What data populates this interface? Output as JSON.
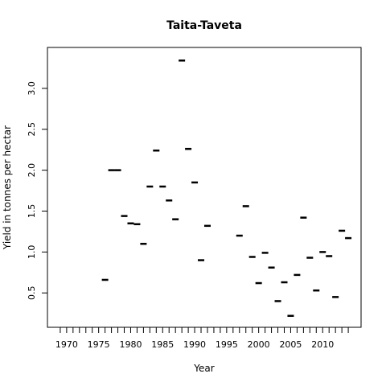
{
  "chart_data": {
    "type": "scatter",
    "title": "Taita-Taveta",
    "xlabel": "Year",
    "ylabel": "Yield in tonnes per hectar",
    "xlim": [
      1967,
      2016
    ],
    "ylim": [
      0.08,
      3.5
    ],
    "x_tick_labels": [
      "1970",
      "1975",
      "1980",
      "1985",
      "1990",
      "1995",
      "2000",
      "2005",
      "2010"
    ],
    "x_tick_values": [
      1970,
      1975,
      1980,
      1985,
      1990,
      1995,
      2000,
      2005,
      2010
    ],
    "x_minor_ticks": [
      1969,
      1970,
      1971,
      1972,
      1973,
      1974,
      1975,
      1976,
      1977,
      1978,
      1979,
      1980,
      1981,
      1982,
      1983,
      1984,
      1985,
      1986,
      1987,
      1988,
      1989,
      1990,
      1991,
      1992,
      1993,
      1994,
      1995,
      1996,
      1997,
      1998,
      1999,
      2000,
      2001,
      2002,
      2003,
      2004,
      2005,
      2006,
      2007,
      2008,
      2009,
      2010,
      2011,
      2012,
      2013,
      2014
    ],
    "y_tick_labels": [
      "0.5",
      "1.0",
      "1.5",
      "2.0",
      "2.5",
      "3.0"
    ],
    "y_tick_values": [
      0.5,
      1.0,
      1.5,
      2.0,
      2.5,
      3.0
    ],
    "grid": false,
    "marker": "dash",
    "points": [
      {
        "x": 1976,
        "y": 0.66
      },
      {
        "x": 1977,
        "y": 2.0
      },
      {
        "x": 1978,
        "y": 2.0
      },
      {
        "x": 1979,
        "y": 1.44
      },
      {
        "x": 1980,
        "y": 1.35
      },
      {
        "x": 1981,
        "y": 1.34
      },
      {
        "x": 1982,
        "y": 1.1
      },
      {
        "x": 1983,
        "y": 1.8
      },
      {
        "x": 1984,
        "y": 2.24
      },
      {
        "x": 1985,
        "y": 1.8
      },
      {
        "x": 1986,
        "y": 1.63
      },
      {
        "x": 1987,
        "y": 1.4
      },
      {
        "x": 1988,
        "y": 3.34
      },
      {
        "x": 1989,
        "y": 2.26
      },
      {
        "x": 1990,
        "y": 1.85
      },
      {
        "x": 1991,
        "y": 0.9
      },
      {
        "x": 1992,
        "y": 1.32
      },
      {
        "x": 1997,
        "y": 1.2
      },
      {
        "x": 1998,
        "y": 1.56
      },
      {
        "x": 1999,
        "y": 0.94
      },
      {
        "x": 2000,
        "y": 0.62
      },
      {
        "x": 2001,
        "y": 0.99
      },
      {
        "x": 2002,
        "y": 0.81
      },
      {
        "x": 2003,
        "y": 0.4
      },
      {
        "x": 2004,
        "y": 0.63
      },
      {
        "x": 2005,
        "y": 0.22
      },
      {
        "x": 2006,
        "y": 0.72
      },
      {
        "x": 2007,
        "y": 1.42
      },
      {
        "x": 2008,
        "y": 0.93
      },
      {
        "x": 2009,
        "y": 0.53
      },
      {
        "x": 2010,
        "y": 1.0
      },
      {
        "x": 2011,
        "y": 0.95
      },
      {
        "x": 2012,
        "y": 0.45
      },
      {
        "x": 2013,
        "y": 1.26
      },
      {
        "x": 2014,
        "y": 1.17
      }
    ]
  }
}
